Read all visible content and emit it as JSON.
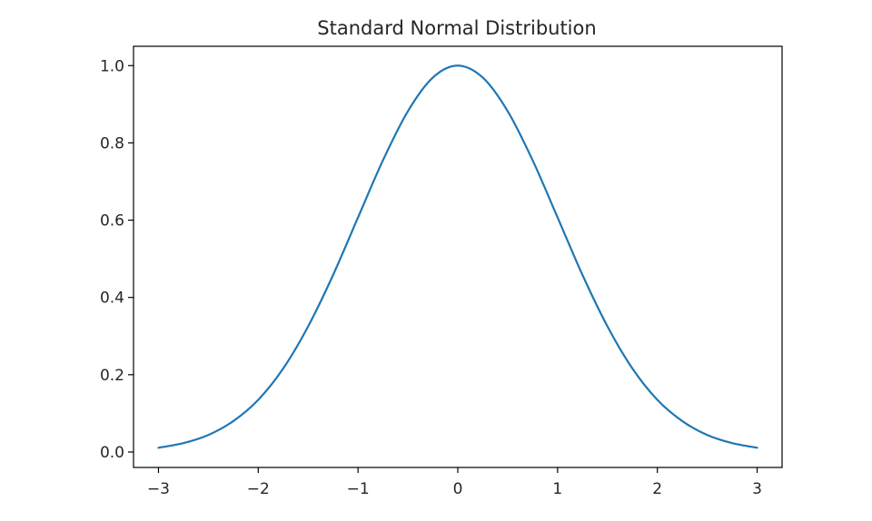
{
  "chart_data": {
    "type": "line",
    "title": "Standard Normal Distribution",
    "xlabel": "",
    "ylabel": "",
    "xlim": [
      -3.25,
      3.25
    ],
    "ylim": [
      -0.04,
      1.05
    ],
    "xticks": [
      -3,
      -2,
      -1,
      0,
      1,
      2,
      3
    ],
    "xtick_labels": [
      "−3",
      "−2",
      "−1",
      "0",
      "1",
      "2",
      "3"
    ],
    "yticks": [
      0.0,
      0.2,
      0.4,
      0.6,
      0.8,
      1.0
    ],
    "ytick_labels": [
      "0.0",
      "0.2",
      "0.4",
      "0.6",
      "0.8",
      "1.0"
    ],
    "grid": false,
    "legend": "none",
    "series": [
      {
        "color": "#1f77b4",
        "x": [
          -3.0,
          -2.75,
          -2.5,
          -2.25,
          -2.0,
          -1.75,
          -1.5,
          -1.25,
          -1.0,
          -0.75,
          -0.5,
          -0.25,
          0.0,
          0.25,
          0.5,
          0.75,
          1.0,
          1.25,
          1.5,
          1.75,
          2.0,
          2.25,
          2.5,
          2.75,
          3.0
        ],
        "y": [
          0.011,
          0.023,
          0.044,
          0.08,
          0.135,
          0.216,
          0.325,
          0.458,
          0.607,
          0.755,
          0.882,
          0.969,
          1.0,
          0.969,
          0.882,
          0.755,
          0.607,
          0.458,
          0.325,
          0.216,
          0.135,
          0.08,
          0.044,
          0.023,
          0.011
        ]
      }
    ]
  }
}
